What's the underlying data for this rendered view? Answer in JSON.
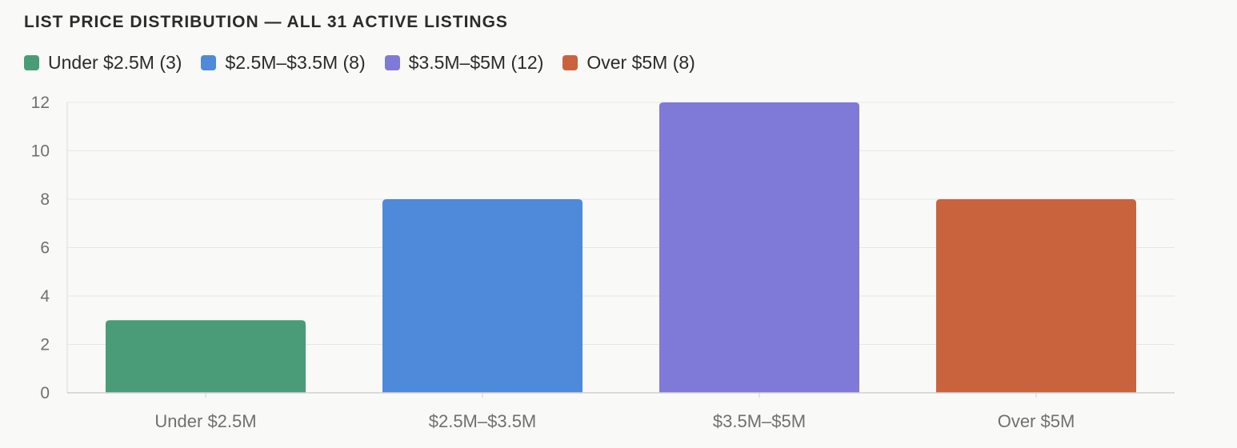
{
  "title": "LIST PRICE DISTRIBUTION — ALL 31 ACTIVE LISTINGS",
  "legend": [
    {
      "label": "Under $2.5M (3)",
      "color": "#4a9c78"
    },
    {
      "label": "$2.5M–$3.5M (8)",
      "color": "#4f89da"
    },
    {
      "label": "$3.5M–$5M (12)",
      "color": "#7f79d8"
    },
    {
      "label": "Over $5M (8)",
      "color": "#c9633e"
    }
  ],
  "chart_data": {
    "type": "bar",
    "title": "LIST PRICE DISTRIBUTION — ALL 31 ACTIVE LISTINGS",
    "categories": [
      "Under $2.5M",
      "$2.5M–$3.5M",
      "$3.5M–$5M",
      "Over $5M"
    ],
    "values": [
      3,
      8,
      12,
      8
    ],
    "colors": [
      "#4a9c78",
      "#4f89da",
      "#7f79d8",
      "#c9633e"
    ],
    "xlabel": "",
    "ylabel": "",
    "ylim": [
      0,
      12
    ],
    "yticks": [
      0,
      2,
      4,
      6,
      8,
      10,
      12
    ],
    "grid": true,
    "legend_position": "top-left"
  }
}
